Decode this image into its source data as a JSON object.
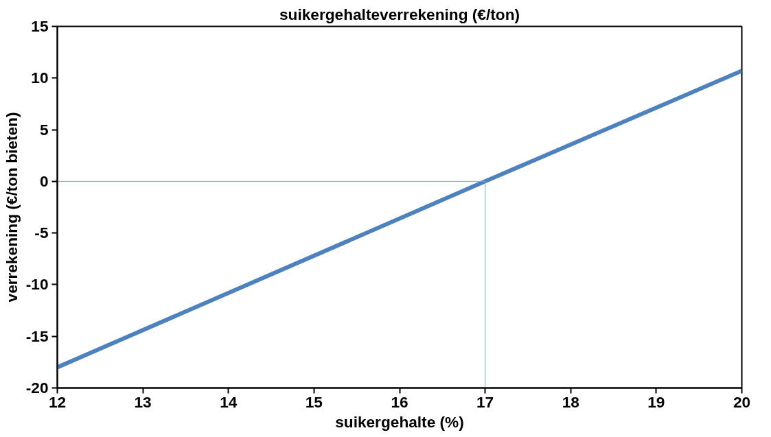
{
  "chart_data": {
    "type": "line",
    "title": "suikergehalteverrekening (€/ton)",
    "xlabel": "suikergehalte (%)",
    "ylabel": "verrekening (€/ton bieten)",
    "series": [
      {
        "x": [
          12,
          17,
          20
        ],
        "values": [
          -18,
          0,
          10.7
        ],
        "color": "#4f81bd"
      },
      {
        "x": [
          12,
          17,
          17
        ],
        "values": [
          0,
          0,
          -20
        ],
        "color": "#6fa8d6"
      }
    ],
    "xlim": [
      12,
      20
    ],
    "xticks": [
      12,
      13,
      14,
      15,
      16,
      17,
      18,
      19,
      20
    ],
    "ylim": [
      -20,
      15
    ],
    "yticks": [
      -20,
      -15,
      -10,
      -5,
      0,
      5,
      10,
      15
    ],
    "grid": false,
    "line_style": "solid",
    "marker": "none"
  }
}
